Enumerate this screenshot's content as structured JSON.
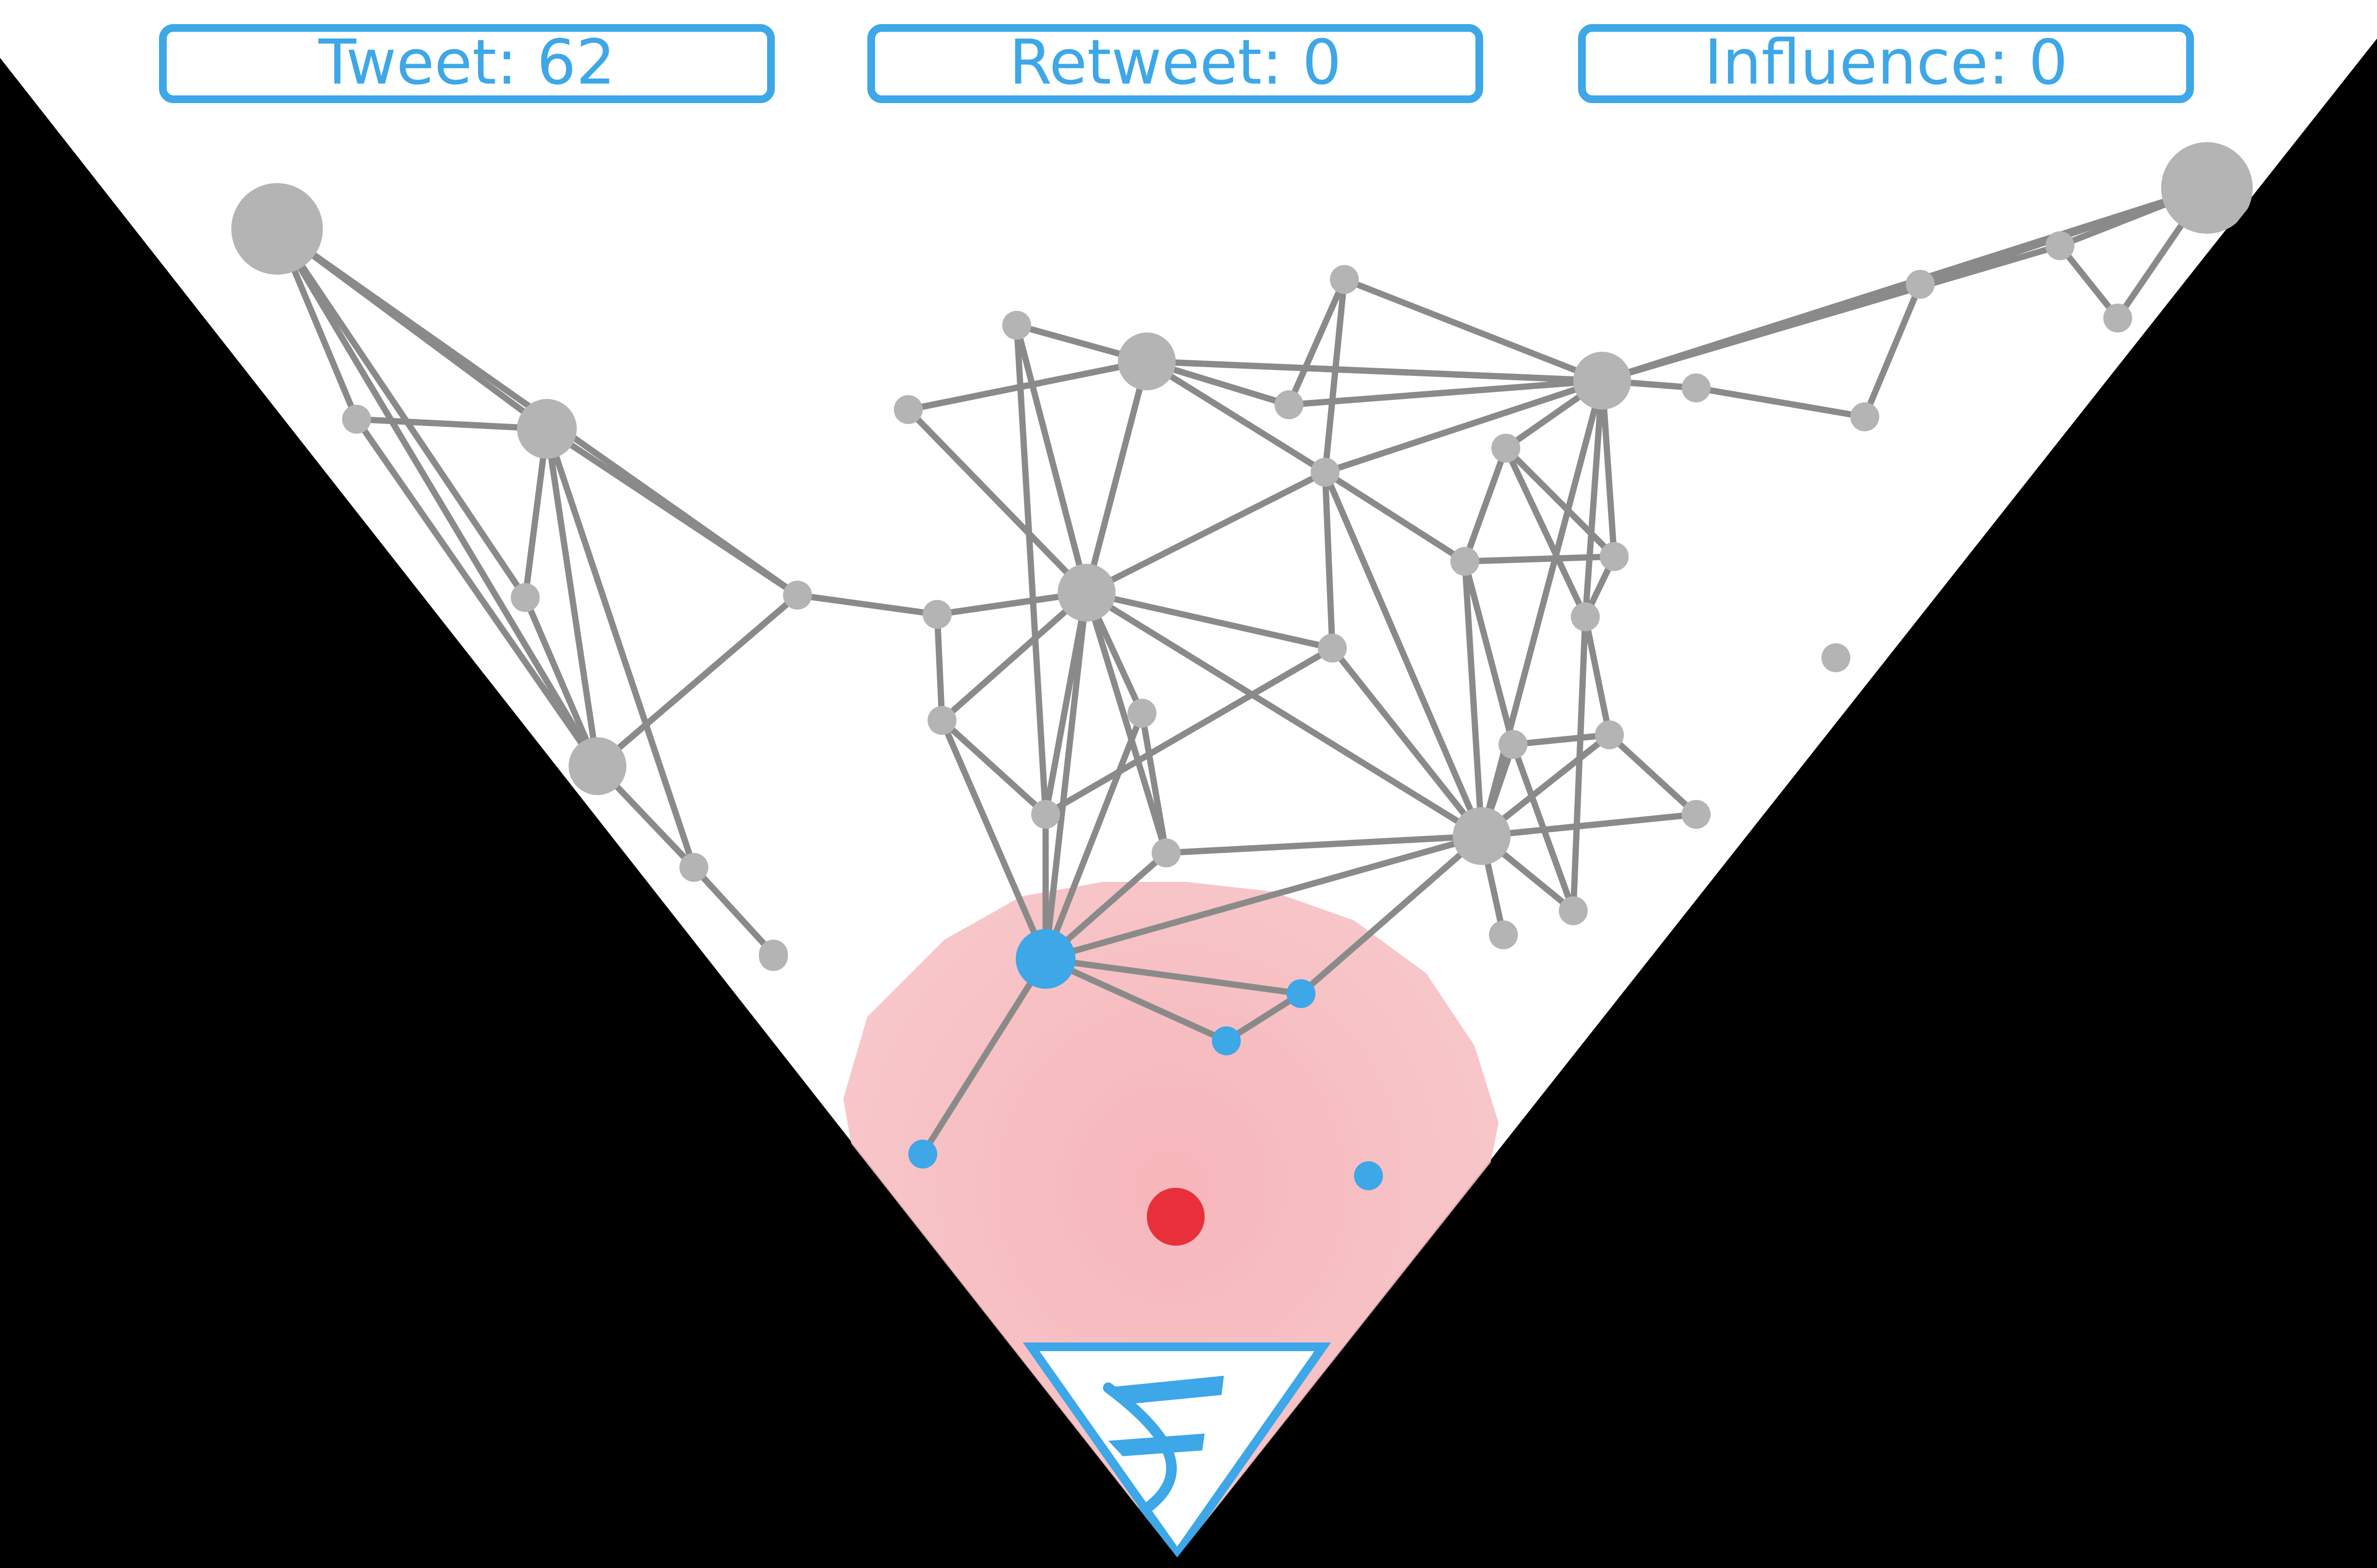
{
  "hud": {
    "tweet_label": "Tweet: 62",
    "retweet_label": "Retweet: 0",
    "influence_label": "Influence: 0"
  },
  "colors": {
    "background": "#000000",
    "playfield": "#ffffff",
    "accent_blue": "#3da7e8",
    "node_gray": "#b4b4b4",
    "edge_gray": "#8a8a8a",
    "player_red": "#e8303a",
    "influence_zone": "#f6b4b8"
  },
  "icons": {
    "logo": "f-logo-icon",
    "player": "player-dot-icon"
  }
}
